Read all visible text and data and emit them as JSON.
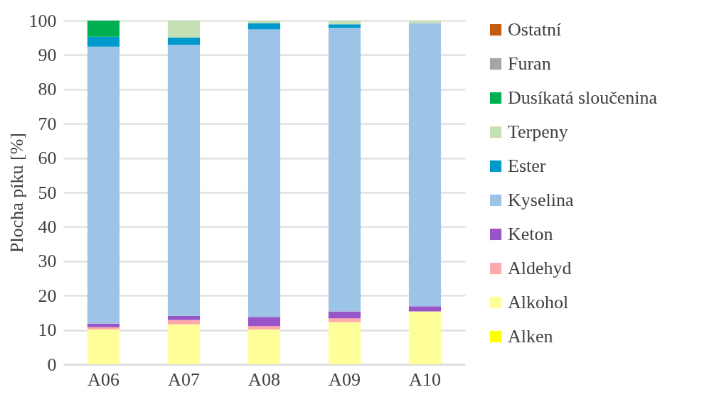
{
  "chart_data": {
    "type": "bar",
    "stacked": true,
    "ylabel": "Plocha píku [%]",
    "categories": [
      "A06",
      "A07",
      "A08",
      "A09",
      "A10"
    ],
    "ylim": [
      0,
      100
    ],
    "yticks": [
      0,
      10,
      20,
      30,
      40,
      50,
      60,
      70,
      80,
      90,
      100
    ],
    "grid": "y",
    "legend": "right",
    "series": [
      {
        "name": "Alken",
        "color": "#ffff00",
        "values": [
          0,
          0,
          0,
          0,
          0
        ]
      },
      {
        "name": "Alkohol",
        "color": "#ffff99",
        "values": [
          10.2,
          11.6,
          10.2,
          12.3,
          15.4
        ]
      },
      {
        "name": "Aldehyd",
        "color": "#ffaaaa",
        "values": [
          0.6,
          1.3,
          0.9,
          1.1,
          0
        ]
      },
      {
        "name": "Keton",
        "color": "#9954c8",
        "values": [
          1.1,
          1.2,
          2.7,
          2.0,
          1.5
        ]
      },
      {
        "name": "Kyselina",
        "color": "#9dc3e6",
        "values": [
          80.5,
          78.9,
          83.6,
          82.5,
          82.4
        ]
      },
      {
        "name": "Ester",
        "color": "#0099cc",
        "values": [
          2.9,
          2.1,
          1.9,
          1.0,
          0
        ]
      },
      {
        "name": "Terpeny",
        "color": "#c5e0b4",
        "values": [
          0,
          4.9,
          0.7,
          1.1,
          0.7
        ]
      },
      {
        "name": "Dusíkatá sloučenina",
        "color": "#00b050",
        "values": [
          4.7,
          0,
          0,
          0,
          0
        ]
      },
      {
        "name": "Furan",
        "color": "#a5a5a5",
        "values": [
          0,
          0,
          0,
          0,
          0
        ]
      },
      {
        "name": "Ostatní",
        "color": "#c55a11",
        "values": [
          0,
          0,
          0,
          0,
          0
        ]
      }
    ]
  }
}
